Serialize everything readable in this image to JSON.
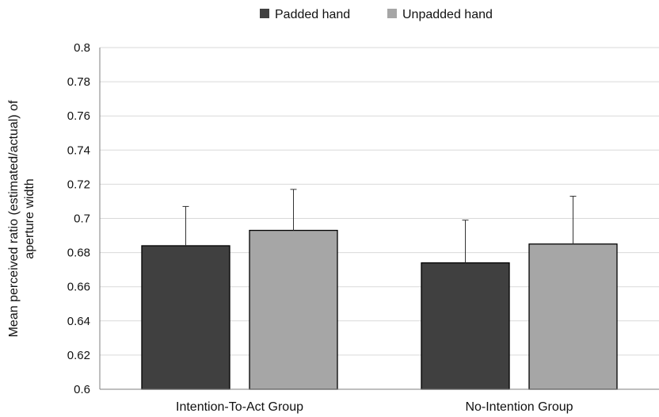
{
  "chart_data": {
    "type": "bar",
    "categories": [
      "Intention-To-Act Group",
      "No-Intention Group"
    ],
    "series": [
      {
        "name": "Padded hand",
        "values": [
          0.684,
          0.674
        ],
        "error": [
          0.023,
          0.025
        ],
        "color": "#404040"
      },
      {
        "name": "Unpadded hand",
        "values": [
          0.693,
          0.685
        ],
        "error": [
          0.024,
          0.028
        ],
        "color": "#a6a6a6"
      }
    ],
    "title": "",
    "xlabel": "",
    "ylabel_lines": [
      "Mean perceived ratio (estimated/actual) of",
      "aperture width"
    ],
    "ylim": [
      0.6,
      0.8
    ],
    "yticks": [
      "0.6",
      "0.62",
      "0.64",
      "0.66",
      "0.68",
      "0.7",
      "0.72",
      "0.74",
      "0.76",
      "0.78",
      "0.8"
    ],
    "grid": true,
    "legend_position": "top-center"
  }
}
